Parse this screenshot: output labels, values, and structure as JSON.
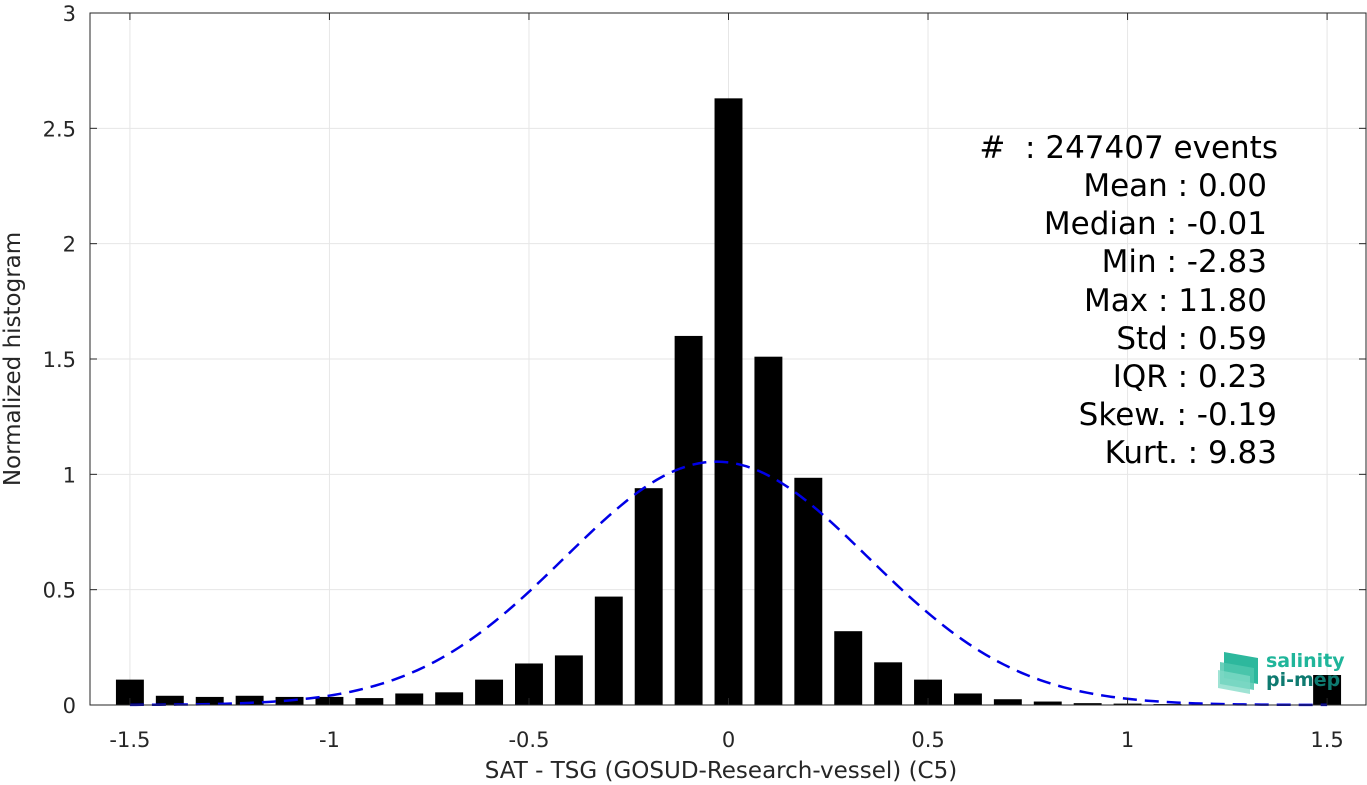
{
  "chart_data": {
    "type": "bar",
    "xlabel": "SAT - TSG (GOSUD-Research-vessel) (C5)",
    "ylabel": "Normalized histogram",
    "xlim": [
      -1.6,
      1.6
    ],
    "ylim": [
      0,
      3
    ],
    "xticks": [
      -1.5,
      -1,
      -0.5,
      0,
      0.5,
      1,
      1.5
    ],
    "xtick_labels": [
      "-1.5",
      "-1",
      "-0.5",
      "0",
      "0.5",
      "1",
      "1.5"
    ],
    "yticks": [
      0,
      0.5,
      1,
      1.5,
      2,
      2.5,
      3
    ],
    "ytick_labels": [
      "0",
      "0.5",
      "1",
      "1.5",
      "2",
      "2.5",
      "3"
    ],
    "grid": true,
    "bar_width": 0.07,
    "x": [
      -1.5,
      -1.4,
      -1.3,
      -1.2,
      -1.1,
      -1.0,
      -0.9,
      -0.8,
      -0.7,
      -0.6,
      -0.5,
      -0.4,
      -0.3,
      -0.2,
      -0.1,
      0.0,
      0.1,
      0.2,
      0.3,
      0.4,
      0.5,
      0.6,
      0.7,
      0.8,
      0.9,
      1.0,
      1.1,
      1.2,
      1.3,
      1.4,
      1.5
    ],
    "values": [
      0.11,
      0.04,
      0.035,
      0.04,
      0.035,
      0.035,
      0.03,
      0.05,
      0.055,
      0.11,
      0.18,
      0.215,
      0.47,
      0.94,
      1.6,
      2.63,
      1.51,
      0.985,
      0.32,
      0.185,
      0.11,
      0.05,
      0.025,
      0.015,
      0.008,
      0.006,
      0.004,
      0.003,
      0.002,
      0.002,
      0.13
    ],
    "fit": {
      "name": "Gaussian fit",
      "style": "dashed",
      "color": "#0000e6",
      "mean": -0.03,
      "peak": 1.055,
      "sigma": 0.38,
      "x_range": [
        -1.5,
        1.5
      ]
    },
    "bar_color": "#000000"
  },
  "stats": {
    "lines": [
      "#  : 247407 events",
      "Mean : 0.00",
      "Median : -0.01",
      "Min : -2.83",
      "Max : 11.80",
      "Std : 0.59",
      "IQR : 0.23",
      "Skew. : -0.19",
      "Kurt. : 9.83"
    ]
  },
  "logo": {
    "line1": "salinity",
    "line2": "pi-mep",
    "color1": "#1fb59a",
    "color2": "#0e7a70"
  }
}
